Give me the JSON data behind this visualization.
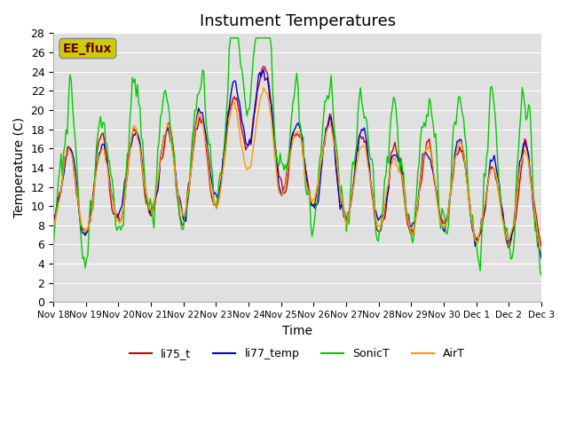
{
  "title": "Instument Temperatures",
  "xlabel": "Time",
  "ylabel": "Temperature (C)",
  "ylim": [
    0,
    28
  ],
  "series": [
    "li75_t",
    "li77_temp",
    "SonicT",
    "AirT"
  ],
  "colors": [
    "#cc0000",
    "#0000cc",
    "#00cc00",
    "#ff9900"
  ],
  "annotation_label": "EE_flux",
  "annotation_color": "#cccc00",
  "annotation_text_color": "#660000",
  "background_color": "#e0e0e0",
  "tick_labels": [
    "Nov 18",
    "Nov 19",
    "Nov 20",
    "Nov 21",
    "Nov 22",
    "Nov 23",
    "Nov 24",
    "Nov 25",
    "Nov 26",
    "Nov 27",
    "Nov 28",
    "Nov 29",
    "Nov 30",
    "Dec 1",
    "Dec 2",
    "Dec 3"
  ],
  "tick_positions": [
    0,
    1,
    2,
    3,
    4,
    5,
    6,
    7,
    8,
    9,
    10,
    11,
    12,
    13,
    14,
    15
  ],
  "xlim": [
    0,
    15
  ],
  "title_fontsize": 13,
  "axis_fontsize": 10,
  "legend_fontsize": 9
}
